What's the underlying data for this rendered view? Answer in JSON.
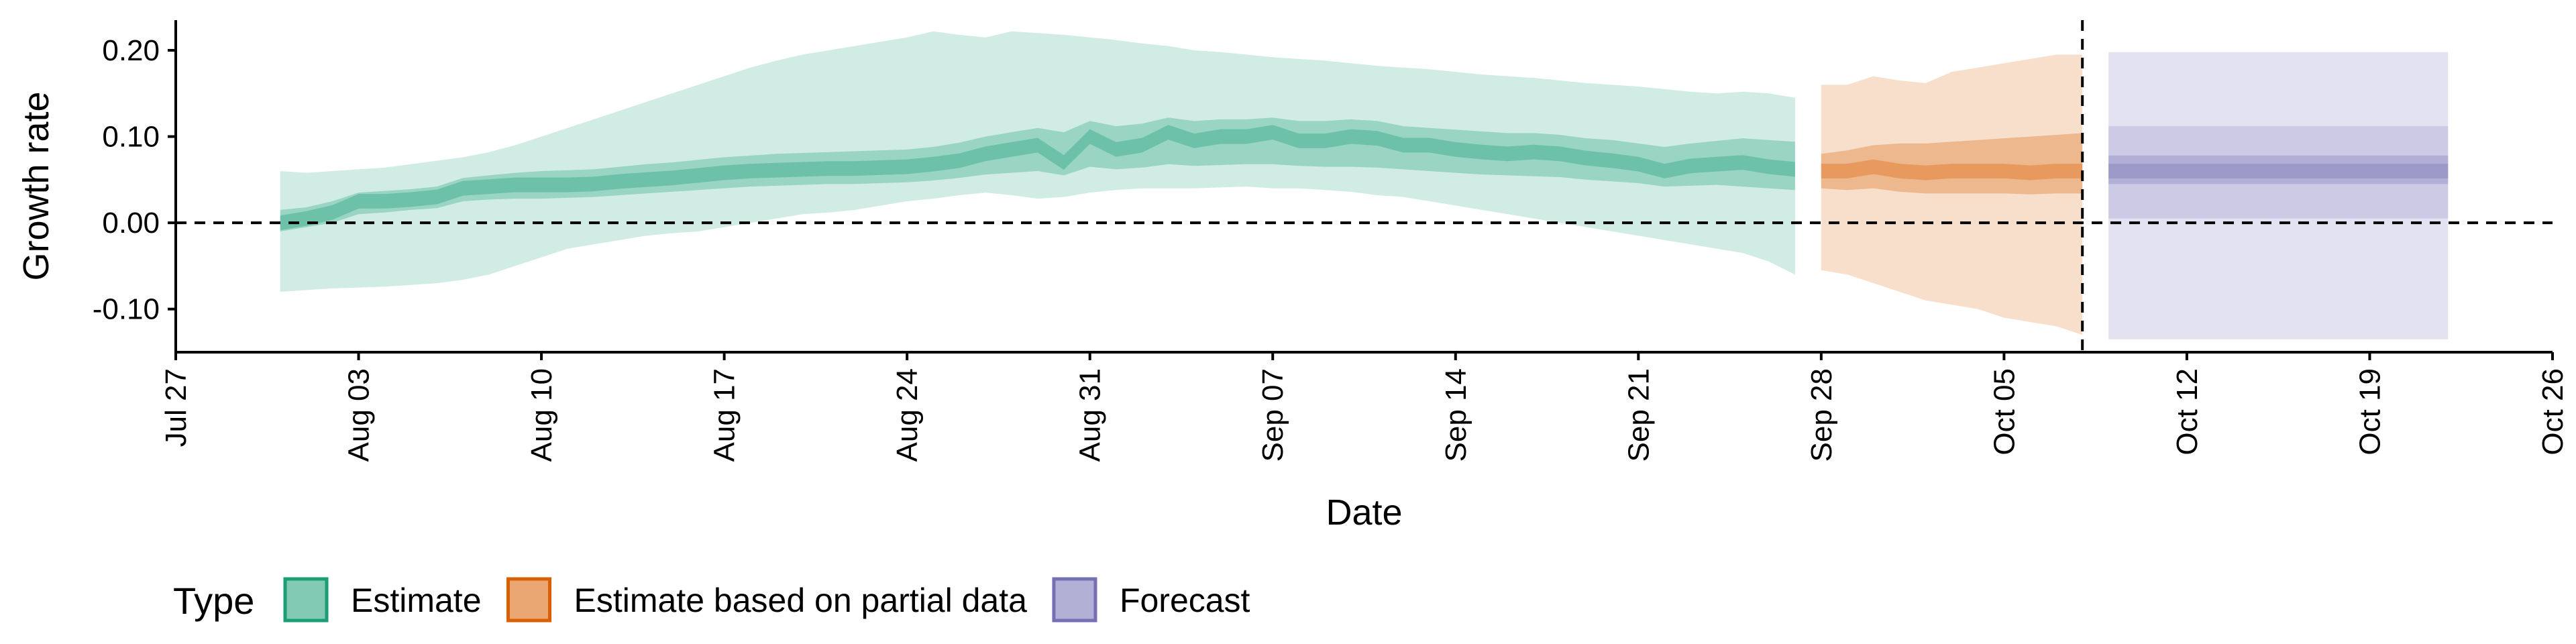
{
  "chart_data": {
    "type": "area",
    "title": "",
    "xlabel": "Date",
    "ylabel": "Growth rate",
    "xlim": [
      "2020-07-27",
      "2020-10-26"
    ],
    "ylim": [
      -0.15,
      0.235
    ],
    "x_ticks": [
      {
        "date": "2020-07-27",
        "label": "Jul 27"
      },
      {
        "date": "2020-08-03",
        "label": "Aug 03"
      },
      {
        "date": "2020-08-10",
        "label": "Aug 10"
      },
      {
        "date": "2020-08-17",
        "label": "Aug 17"
      },
      {
        "date": "2020-08-24",
        "label": "Aug 24"
      },
      {
        "date": "2020-08-31",
        "label": "Aug 31"
      },
      {
        "date": "2020-09-07",
        "label": "Sep 07"
      },
      {
        "date": "2020-09-14",
        "label": "Sep 14"
      },
      {
        "date": "2020-09-21",
        "label": "Sep 21"
      },
      {
        "date": "2020-09-28",
        "label": "Sep 28"
      },
      {
        "date": "2020-10-05",
        "label": "Oct 05"
      },
      {
        "date": "2020-10-12",
        "label": "Oct 12"
      },
      {
        "date": "2020-10-19",
        "label": "Oct 19"
      },
      {
        "date": "2020-10-26",
        "label": "Oct 26"
      }
    ],
    "y_ticks": [
      {
        "value": 0.2,
        "label": "0.20"
      },
      {
        "value": 0.1,
        "label": "0.10"
      },
      {
        "value": 0.0,
        "label": "0.00"
      },
      {
        "value": -0.1,
        "label": "-0.10"
      }
    ],
    "reference_lines": {
      "horizontal_y": 0.0,
      "vertical_date": "2020-10-08",
      "style": "dashed"
    },
    "grid": false,
    "legend": {
      "title": "Type",
      "position": "bottom-left",
      "entries": [
        {
          "name": "Estimate",
          "color": "#1b9e77"
        },
        {
          "name": "Estimate based on partial data",
          "color": "#d95f02"
        },
        {
          "name": "Forecast",
          "color": "#7570b3"
        }
      ]
    },
    "series": [
      {
        "name": "Estimate",
        "color": "#1b9e77",
        "x": [
          "2020-07-31",
          "2020-08-01",
          "2020-08-02",
          "2020-08-03",
          "2020-08-04",
          "2020-08-05",
          "2020-08-06",
          "2020-08-07",
          "2020-08-08",
          "2020-08-09",
          "2020-08-10",
          "2020-08-11",
          "2020-08-12",
          "2020-08-13",
          "2020-08-14",
          "2020-08-15",
          "2020-08-16",
          "2020-08-17",
          "2020-08-18",
          "2020-08-19",
          "2020-08-20",
          "2020-08-21",
          "2020-08-22",
          "2020-08-23",
          "2020-08-24",
          "2020-08-25",
          "2020-08-26",
          "2020-08-27",
          "2020-08-28",
          "2020-08-29",
          "2020-08-30",
          "2020-08-31",
          "2020-09-01",
          "2020-09-02",
          "2020-09-03",
          "2020-09-04",
          "2020-09-05",
          "2020-09-06",
          "2020-09-07",
          "2020-09-08",
          "2020-09-09",
          "2020-09-10",
          "2020-09-11",
          "2020-09-12",
          "2020-09-13",
          "2020-09-14",
          "2020-09-15",
          "2020-09-16",
          "2020-09-17",
          "2020-09-18",
          "2020-09-19",
          "2020-09-20",
          "2020-09-21",
          "2020-09-22",
          "2020-09-23",
          "2020-09-24",
          "2020-09-25",
          "2020-09-26",
          "2020-09-27"
        ],
        "median": [
          0.0,
          0.005,
          0.012,
          0.025,
          0.025,
          0.027,
          0.03,
          0.04,
          0.042,
          0.044,
          0.044,
          0.044,
          0.045,
          0.048,
          0.05,
          0.052,
          0.055,
          0.058,
          0.06,
          0.061,
          0.062,
          0.063,
          0.063,
          0.064,
          0.065,
          0.068,
          0.072,
          0.08,
          0.085,
          0.09,
          0.07,
          0.1,
          0.085,
          0.09,
          0.105,
          0.095,
          0.1,
          0.1,
          0.105,
          0.095,
          0.095,
          0.1,
          0.098,
          0.09,
          0.09,
          0.085,
          0.082,
          0.08,
          0.082,
          0.08,
          0.075,
          0.072,
          0.068,
          0.06,
          0.066,
          0.068,
          0.07,
          0.065,
          0.062
        ],
        "lower_50": [
          -0.01,
          -0.005,
          0.0,
          0.01,
          0.012,
          0.015,
          0.017,
          0.025,
          0.027,
          0.028,
          0.028,
          0.029,
          0.03,
          0.032,
          0.034,
          0.036,
          0.038,
          0.04,
          0.042,
          0.043,
          0.044,
          0.045,
          0.045,
          0.046,
          0.047,
          0.049,
          0.052,
          0.056,
          0.058,
          0.06,
          0.055,
          0.065,
          0.062,
          0.064,
          0.068,
          0.066,
          0.067,
          0.068,
          0.068,
          0.066,
          0.065,
          0.065,
          0.064,
          0.062,
          0.06,
          0.058,
          0.056,
          0.055,
          0.054,
          0.053,
          0.05,
          0.048,
          0.046,
          0.042,
          0.043,
          0.044,
          0.042,
          0.04,
          0.038
        ],
        "upper_50": [
          0.015,
          0.018,
          0.025,
          0.035,
          0.037,
          0.039,
          0.042,
          0.052,
          0.055,
          0.058,
          0.06,
          0.061,
          0.062,
          0.065,
          0.068,
          0.07,
          0.073,
          0.076,
          0.078,
          0.08,
          0.081,
          0.082,
          0.083,
          0.084,
          0.085,
          0.088,
          0.093,
          0.1,
          0.105,
          0.11,
          0.105,
          0.118,
          0.112,
          0.115,
          0.122,
          0.118,
          0.12,
          0.12,
          0.122,
          0.118,
          0.118,
          0.12,
          0.118,
          0.112,
          0.11,
          0.108,
          0.106,
          0.104,
          0.104,
          0.102,
          0.098,
          0.096,
          0.092,
          0.088,
          0.092,
          0.095,
          0.098,
          0.096,
          0.094
        ],
        "lower_90": [
          -0.08,
          -0.078,
          -0.076,
          -0.075,
          -0.074,
          -0.072,
          -0.07,
          -0.066,
          -0.06,
          -0.05,
          -0.04,
          -0.03,
          -0.025,
          -0.02,
          -0.015,
          -0.012,
          -0.01,
          -0.005,
          0.0,
          0.005,
          0.01,
          0.012,
          0.015,
          0.02,
          0.025,
          0.028,
          0.032,
          0.035,
          0.032,
          0.028,
          0.03,
          0.035,
          0.038,
          0.04,
          0.04,
          0.04,
          0.041,
          0.042,
          0.04,
          0.04,
          0.038,
          0.036,
          0.032,
          0.03,
          0.025,
          0.02,
          0.015,
          0.01,
          0.005,
          0.0,
          -0.005,
          -0.01,
          -0.015,
          -0.02,
          -0.025,
          -0.03,
          -0.035,
          -0.045,
          -0.06
        ],
        "upper_90": [
          0.06,
          0.058,
          0.06,
          0.062,
          0.064,
          0.068,
          0.072,
          0.076,
          0.082,
          0.09,
          0.1,
          0.11,
          0.12,
          0.13,
          0.14,
          0.15,
          0.16,
          0.17,
          0.18,
          0.188,
          0.195,
          0.2,
          0.205,
          0.21,
          0.215,
          0.222,
          0.218,
          0.215,
          0.222,
          0.22,
          0.218,
          0.215,
          0.212,
          0.208,
          0.205,
          0.2,
          0.198,
          0.195,
          0.192,
          0.19,
          0.188,
          0.185,
          0.182,
          0.18,
          0.178,
          0.175,
          0.172,
          0.17,
          0.168,
          0.165,
          0.162,
          0.16,
          0.158,
          0.155,
          0.152,
          0.15,
          0.152,
          0.15,
          0.145
        ]
      },
      {
        "name": "Estimate based on partial data",
        "color": "#d95f02",
        "x": [
          "2020-09-28",
          "2020-09-29",
          "2020-09-30",
          "2020-10-01",
          "2020-10-02",
          "2020-10-03",
          "2020-10-04",
          "2020-10-05",
          "2020-10-06",
          "2020-10-07",
          "2020-10-08"
        ],
        "median": [
          0.06,
          0.06,
          0.065,
          0.06,
          0.058,
          0.06,
          0.06,
          0.06,
          0.058,
          0.06,
          0.06
        ],
        "lower_50": [
          0.04,
          0.038,
          0.04,
          0.036,
          0.034,
          0.034,
          0.034,
          0.034,
          0.033,
          0.034,
          0.034
        ],
        "upper_50": [
          0.08,
          0.084,
          0.09,
          0.092,
          0.092,
          0.094,
          0.096,
          0.098,
          0.1,
          0.102,
          0.104
        ],
        "lower_90": [
          -0.055,
          -0.06,
          -0.07,
          -0.08,
          -0.09,
          -0.095,
          -0.1,
          -0.11,
          -0.115,
          -0.12,
          -0.13
        ],
        "upper_90": [
          0.16,
          0.16,
          0.17,
          0.165,
          0.162,
          0.175,
          0.18,
          0.185,
          0.19,
          0.195,
          0.195
        ]
      },
      {
        "name": "Forecast",
        "color": "#7570b3",
        "x": [
          "2020-10-09",
          "2020-10-22"
        ],
        "median": [
          0.06,
          0.06
        ],
        "lower_50": [
          0.045,
          0.045
        ],
        "upper_50": [
          0.078,
          0.078
        ],
        "lower_90": [
          0.005,
          0.005
        ],
        "upper_90": [
          0.112,
          0.112
        ],
        "lower_outer": [
          -0.135,
          -0.135
        ],
        "upper_outer": [
          0.198,
          0.198
        ]
      }
    ]
  }
}
